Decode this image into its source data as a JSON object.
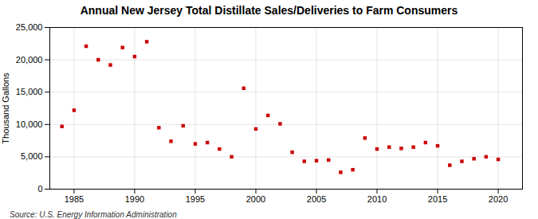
{
  "chart_data": {
    "type": "scatter",
    "title": "Annual New Jersey Total Distillate Sales/Deliveries to Farm Consumers",
    "ylabel": "Thousand Gallons",
    "source": "Source: U.S. Energy Information Administration",
    "x": [
      1984,
      1985,
      1986,
      1987,
      1988,
      1989,
      1990,
      1991,
      1992,
      1993,
      1994,
      1995,
      1996,
      1997,
      1998,
      1999,
      2000,
      2001,
      2002,
      2003,
      2004,
      2005,
      2006,
      2007,
      2008,
      2009,
      2010,
      2011,
      2012,
      2013,
      2014,
      2015,
      2016,
      2017,
      2018,
      2019,
      2020
    ],
    "values": [
      9700,
      12200,
      22100,
      20000,
      19200,
      21900,
      20500,
      22800,
      9500,
      7400,
      9800,
      7000,
      7200,
      6200,
      5000,
      15600,
      9300,
      11400,
      10100,
      5700,
      4300,
      4400,
      4500,
      2600,
      3000,
      7900,
      6200,
      6500,
      6300,
      6500,
      7200,
      6700,
      3700,
      4300,
      4700,
      5000,
      4600
    ],
    "color": "#CC0000",
    "marker": "square",
    "xlim": [
      1983,
      2022
    ],
    "xticks": [
      1985,
      1990,
      1995,
      2000,
      2005,
      2010,
      2015,
      2020
    ],
    "ylim": [
      0,
      25000
    ],
    "yticks": [
      0,
      {
        "value": 5000,
        "label": "5,000"
      },
      {
        "value": 10000,
        "label": "10,000"
      },
      {
        "value": 15000,
        "label": "15,000"
      },
      {
        "value": 20000,
        "label": "20,000"
      },
      {
        "value": 25000,
        "label": "25,000"
      }
    ],
    "grid": true
  }
}
